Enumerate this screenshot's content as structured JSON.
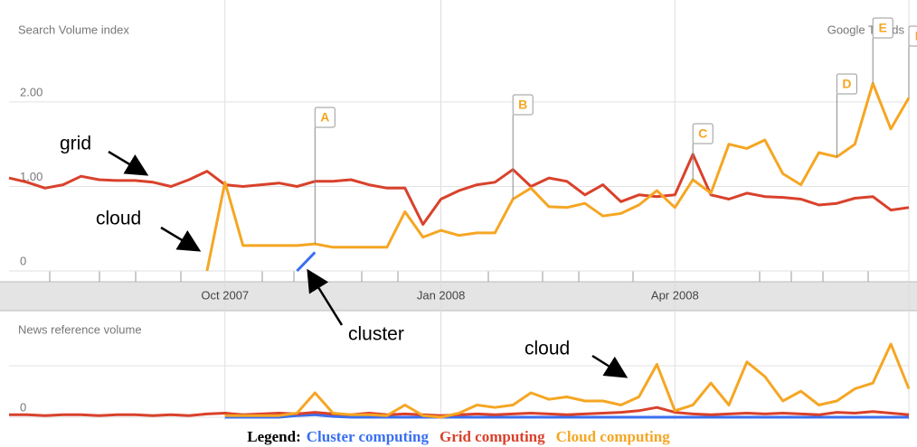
{
  "chart_data": [
    {
      "type": "line",
      "title": "Search Volume index",
      "brand": "Google Trends",
      "categories": [
        null,
        null,
        null,
        null,
        null,
        null,
        null,
        null,
        null,
        null,
        null,
        null,
        "Oct 2007",
        null,
        null,
        null,
        null,
        null,
        null,
        null,
        null,
        null,
        null,
        null,
        "Jan 2008",
        null,
        null,
        null,
        null,
        null,
        null,
        null,
        null,
        null,
        null,
        null,
        null,
        "Apr 2008",
        null,
        null,
        null,
        null,
        null,
        null,
        null,
        null,
        null,
        null,
        null,
        null,
        null
      ],
      "series": [
        {
          "name": "Cluster computing",
          "color": "#3a6ff0",
          "values": [
            null,
            null,
            null,
            null,
            null,
            null,
            null,
            null,
            null,
            null,
            null,
            null,
            null,
            null,
            null,
            null,
            0,
            0.22,
            null,
            null,
            null,
            null,
            null,
            null,
            null,
            null,
            null,
            null,
            null,
            null,
            null,
            null,
            null,
            null,
            null,
            null,
            null,
            null,
            null,
            null,
            null,
            null,
            null,
            null,
            null,
            null,
            null,
            null,
            null,
            null,
            null
          ]
        },
        {
          "name": "Grid computing",
          "color": "#d9412b",
          "values": [
            1.1,
            1.05,
            0.98,
            1.02,
            1.12,
            1.08,
            1.07,
            1.07,
            1.05,
            1.0,
            1.08,
            1.18,
            1.02,
            1.0,
            1.02,
            1.04,
            1.0,
            1.06,
            1.06,
            1.08,
            1.02,
            0.98,
            0.98,
            0.55,
            0.85,
            0.95,
            1.02,
            1.05,
            1.2,
            1.0,
            1.1,
            1.06,
            0.9,
            1.02,
            0.82,
            0.9,
            0.88,
            0.9,
            1.38,
            0.9,
            0.85,
            0.92,
            0.88,
            0.87,
            0.85,
            0.78,
            0.8,
            0.86,
            0.88,
            0.72,
            0.75
          ]
        },
        {
          "name": "Cloud computing",
          "color": "#f5a623",
          "values": [
            null,
            null,
            null,
            null,
            null,
            null,
            null,
            null,
            null,
            null,
            null,
            0,
            1.05,
            0.3,
            0.3,
            0.3,
            0.3,
            0.32,
            0.28,
            0.28,
            0.28,
            0.28,
            0.7,
            0.4,
            0.48,
            0.42,
            0.45,
            0.45,
            0.85,
            0.98,
            0.76,
            0.75,
            0.8,
            0.65,
            0.68,
            0.78,
            0.95,
            0.75,
            1.08,
            0.92,
            1.5,
            1.45,
            1.55,
            1.15,
            1.02,
            1.4,
            1.35,
            1.5,
            2.22,
            1.68,
            2.05
          ]
        }
      ],
      "ylim": [
        0,
        3.1
      ],
      "yticks": [
        0,
        {
          "value": 1,
          "label": "1.00"
        },
        {
          "value": 2,
          "label": "2.00"
        }
      ],
      "grid": true,
      "annotations": [
        "grid",
        "cloud",
        "cluster"
      ],
      "flags": [
        "A",
        "B",
        "C",
        "D",
        "E",
        "F"
      ],
      "legend_title": "Legend:"
    },
    {
      "type": "line",
      "title": "News reference volume",
      "series": [
        {
          "color": "#3a6ff0",
          "values": [
            null,
            null,
            null,
            null,
            null,
            null,
            null,
            null,
            null,
            null,
            null,
            null,
            0,
            0,
            0,
            0,
            0.02,
            0.03,
            0.01,
            0,
            0,
            0,
            0,
            0,
            0,
            0,
            0,
            0,
            0,
            0,
            0,
            0,
            0,
            0,
            0,
            0,
            0,
            0,
            0,
            0,
            0,
            0,
            0,
            0,
            0,
            0,
            0,
            0,
            0,
            0,
            0
          ]
        },
        {
          "color": "#d9412b",
          "values": [
            0.03,
            0.03,
            0.02,
            0.03,
            0.03,
            0.02,
            0.03,
            0.03,
            0.02,
            0.03,
            0.02,
            0.04,
            0.05,
            0.03,
            0.04,
            0.05,
            0.04,
            0.06,
            0.04,
            0.03,
            0.05,
            0.03,
            0.04,
            0.03,
            0.02,
            0.03,
            0.04,
            0.03,
            0.04,
            0.05,
            0.04,
            0.03,
            0.04,
            0.05,
            0.06,
            0.08,
            0.12,
            0.06,
            0.04,
            0.03,
            0.04,
            0.05,
            0.04,
            0.05,
            0.04,
            0.03,
            0.06,
            0.05,
            0.07,
            0.05,
            0.03
          ]
        },
        {
          "color": "#f5a623",
          "values": [
            null,
            null,
            null,
            null,
            null,
            null,
            null,
            null,
            null,
            null,
            null,
            null,
            0.02,
            0.02,
            0.02,
            0.02,
            0.05,
            0.3,
            0.05,
            0.03,
            0.03,
            0.02,
            0.15,
            0.02,
            0,
            0.05,
            0.15,
            0.12,
            0.15,
            0.3,
            0.22,
            0.25,
            0.2,
            0.2,
            0.15,
            0.25,
            0.65,
            0.08,
            0.15,
            0.42,
            0.15,
            0.68,
            0.5,
            0.2,
            0.32,
            0.15,
            0.2,
            0.35,
            0.42,
            0.9,
            0.35
          ]
        }
      ],
      "ylim": [
        0,
        1
      ],
      "yticks": [
        0
      ],
      "grid": true,
      "annotations": [
        "cloud"
      ]
    }
  ]
}
